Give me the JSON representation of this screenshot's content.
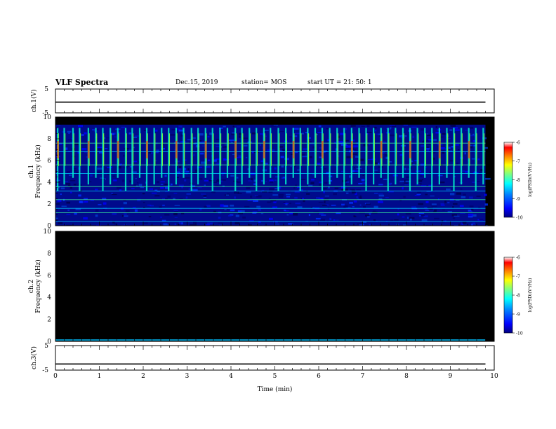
{
  "header": {
    "title": "VLF Spectra",
    "date": "Dec.15, 2019",
    "station": "station= MOS",
    "start": "start  UT =   21: 50: 1"
  },
  "colors": {
    "background": "#000000",
    "colormap": [
      "#00007f",
      "#0000ff",
      "#007fff",
      "#00ffff",
      "#7fff7f",
      "#ffff00",
      "#ff7f00",
      "#ff0000",
      "#ffffff"
    ]
  },
  "chart_data": [
    {
      "type": "line",
      "panel": "ch1-voltage",
      "ylabel": "ch.1(V)",
      "ylim": [
        -5,
        5
      ],
      "yticks": [
        "5",
        "-5"
      ],
      "xlim": [
        0,
        10
      ],
      "series": [
        {
          "x": [
            0,
            9.8
          ],
          "values": [
            -0.5,
            -0.5
          ]
        }
      ]
    },
    {
      "type": "heatmap",
      "panel": "ch1-spectrogram",
      "ylabel": "ch.1\nFrequency (kHz)",
      "ylim": [
        0,
        10
      ],
      "yticks": [
        "0",
        "2",
        "4",
        "6",
        "8",
        "10"
      ],
      "xlim": [
        0,
        10
      ],
      "colorbar": {
        "label": "log(PSD)(V²/Hz)",
        "range": [
          -10,
          -6
        ],
        "ticks": [
          "-6",
          "-7",
          "-8",
          "-9",
          "-10"
        ]
      },
      "burst_times_min": [
        0.05,
        0.2,
        0.4,
        0.55,
        0.75,
        0.92,
        1.08,
        1.25,
        1.42,
        1.6,
        1.75,
        1.92,
        2.08,
        2.25,
        2.42,
        2.58,
        2.75,
        2.92,
        3.1,
        3.25,
        3.42,
        3.58,
        3.75,
        3.92,
        4.1,
        4.25,
        4.42,
        4.58,
        4.75,
        4.9,
        5.08,
        5.25,
        5.42,
        5.58,
        5.75,
        5.92,
        6.08,
        6.25,
        6.42,
        6.58,
        6.75,
        6.92,
        7.08,
        7.25,
        7.42,
        7.58,
        7.75,
        7.92,
        8.08,
        8.25,
        8.42,
        8.58,
        8.75,
        8.92,
        9.08,
        9.25,
        9.42,
        9.58,
        9.75
      ],
      "tone_lines_khz": [
        0.4,
        1.2,
        1.6,
        2.4,
        3.2,
        3.6,
        4.8,
        5.6,
        6.8,
        7.6
      ]
    },
    {
      "type": "heatmap",
      "panel": "ch2-spectrogram",
      "ylabel": "ch.2\nFrequency (kHz)",
      "ylim": [
        0,
        10
      ],
      "yticks": [
        "0",
        "2",
        "4",
        "6",
        "8",
        "10"
      ],
      "xlim": [
        0,
        10
      ],
      "colorbar": {
        "label": "log(PSD)(V²/Hz)",
        "range": [
          -10,
          -6
        ],
        "ticks": [
          "-6",
          "-7",
          "-8",
          "-9",
          "-10"
        ]
      }
    },
    {
      "type": "line",
      "panel": "ch3-voltage",
      "ylabel": "ch.3(V)",
      "ylim": [
        -5,
        5
      ],
      "yticks": [
        "5",
        "-5"
      ],
      "xlim": [
        0,
        10
      ],
      "xlabel": "Time (min)",
      "xticks": [
        "0",
        "1",
        "2",
        "3",
        "4",
        "5",
        "6",
        "7",
        "8",
        "9",
        "10"
      ],
      "series": [
        {
          "x": [
            0,
            9.8
          ],
          "values": [
            -2.5,
            -2.5
          ]
        }
      ]
    }
  ]
}
